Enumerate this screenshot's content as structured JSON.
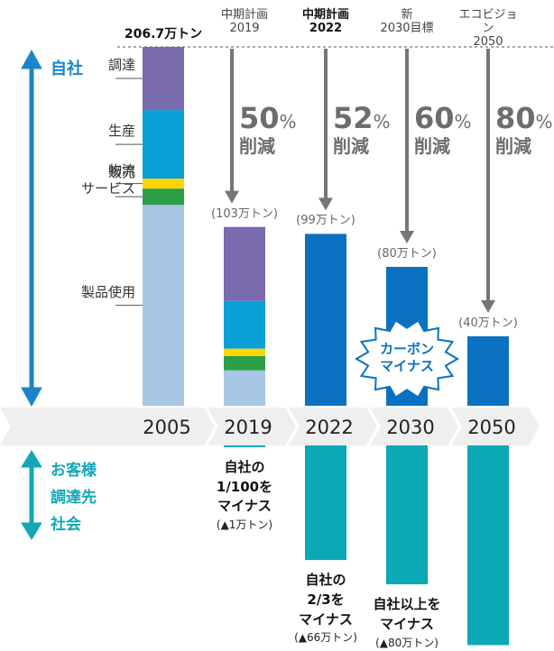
{
  "chart_data": {
    "type": "bar",
    "categories": [
      "2005",
      "2019",
      "2022",
      "2030",
      "2050"
    ],
    "headers": [
      null,
      "中期計画\n2019",
      "中期計画\n2022",
      "新\n2030目標",
      "エコビジョン\n2050"
    ],
    "reductions": [
      null,
      50,
      52,
      60,
      80
    ],
    "reduction_unit": "%",
    "reduction_text": "削減",
    "scopes": [
      "自社",
      "お客様\n調達先\n社会"
    ],
    "series": [
      {
        "name": "調達",
        "color": "#7a6aae",
        "values": [
          36.4,
          42.6,
          null,
          null,
          null
        ]
      },
      {
        "name": "生産",
        "color": "#0b9fd8",
        "values": [
          39.5,
          27.5,
          null,
          null,
          null
        ]
      },
      {
        "name": "物流",
        "color": "#ffd500",
        "values": [
          5.7,
          4.2,
          null,
          null,
          null
        ]
      },
      {
        "name": "販売\nサービス",
        "color": "#2b9e46",
        "values": [
          9.4,
          8.3,
          null,
          null,
          null
        ]
      },
      {
        "name": "製品使用",
        "color": "#a8c6e6",
        "values": [
          115.7,
          20.4,
          null,
          null,
          null
        ]
      }
    ],
    "totals": {
      "color": "#0a72c0",
      "values": [
        206.7,
        103,
        99,
        80,
        40
      ],
      "value_labels": [
        "206.7万トン",
        "(103万トン)",
        "(99万トン)",
        "(80万トン)",
        "(40万トン)"
      ]
    },
    "offsets": {
      "color": "#0ba8b5",
      "values": [
        null,
        1,
        66,
        80,
        115
      ],
      "labels": [
        null,
        "自社の\n1/100を\nマイナス",
        "自社の\n2/3を\nマイナス",
        "自社以上を\nマイナス",
        null
      ],
      "value_labels": [
        null,
        "(▲1万トン)",
        "(▲66万トン)",
        "(▲80万トン)",
        null
      ]
    },
    "badge": "カーボン\nマイナス"
  }
}
